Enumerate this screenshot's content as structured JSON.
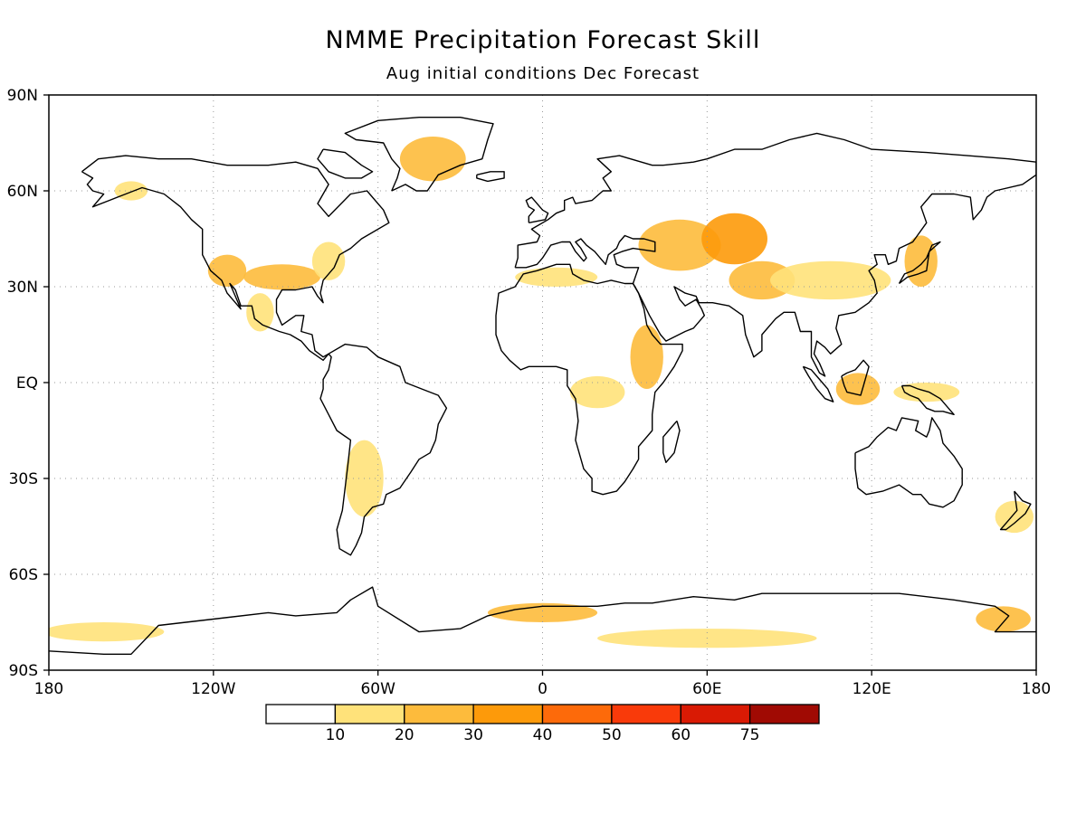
{
  "header": {
    "title": "NMME Precipitation Forecast Skill",
    "subtitle": "Aug initial conditions  Dec Forecast"
  },
  "axes": {
    "lat_labels": [
      "90N",
      "60N",
      "30N",
      "EQ",
      "30S",
      "60S",
      "90S"
    ],
    "lat_values": [
      90,
      60,
      30,
      0,
      -30,
      -60,
      -90
    ],
    "lon_labels": [
      "180",
      "120W",
      "60W",
      "0",
      "60E",
      "120E",
      "180"
    ],
    "lon_values": [
      -180,
      -120,
      -60,
      0,
      60,
      120,
      180
    ],
    "grid": true
  },
  "colorbar": {
    "labels": [
      "10",
      "20",
      "30",
      "40",
      "50",
      "60",
      "75"
    ],
    "bins": [
      {
        "min": null,
        "max": 10,
        "color": "#ffffff"
      },
      {
        "min": 10,
        "max": 20,
        "color": "#ffe27a"
      },
      {
        "min": 20,
        "max": 30,
        "color": "#fdbb3c"
      },
      {
        "min": 30,
        "max": 40,
        "color": "#fd9a0a"
      },
      {
        "min": 40,
        "max": 50,
        "color": "#fd6a0a"
      },
      {
        "min": 50,
        "max": 60,
        "color": "#f93a0a"
      },
      {
        "min": 60,
        "max": 75,
        "color": "#d91a04"
      },
      {
        "min": 75,
        "max": null,
        "color": "#a00a03"
      }
    ]
  },
  "skill_regions": [
    {
      "name": "greenland",
      "lon": -40,
      "lat": 70,
      "rlon": 12,
      "rlat": 7,
      "level": 2
    },
    {
      "name": "western-us",
      "lon": -115,
      "lat": 35,
      "rlon": 7,
      "rlat": 5,
      "level": 2
    },
    {
      "name": "southern-us",
      "lon": -95,
      "lat": 33,
      "rlon": 14,
      "rlat": 4,
      "level": 2
    },
    {
      "name": "mexico",
      "lon": -103,
      "lat": 22,
      "rlon": 5,
      "rlat": 6,
      "level": 1
    },
    {
      "name": "eastern-us",
      "lon": -78,
      "lat": 38,
      "rlon": 6,
      "rlat": 6,
      "level": 1
    },
    {
      "name": "alaska",
      "lon": -150,
      "lat": 60,
      "rlon": 6,
      "rlat": 3,
      "level": 1
    },
    {
      "name": "caspian",
      "lon": 50,
      "lat": 43,
      "rlon": 15,
      "rlat": 8,
      "level": 2
    },
    {
      "name": "central-asia",
      "lon": 70,
      "lat": 45,
      "rlon": 12,
      "rlat": 8,
      "level": 3
    },
    {
      "name": "tibet",
      "lon": 80,
      "lat": 32,
      "rlon": 12,
      "rlat": 6,
      "level": 2
    },
    {
      "name": "china",
      "lon": 105,
      "lat": 32,
      "rlon": 22,
      "rlat": 6,
      "level": 1
    },
    {
      "name": "japan",
      "lon": 138,
      "lat": 38,
      "rlon": 6,
      "rlat": 8,
      "level": 2
    },
    {
      "name": "north-africa",
      "lon": 5,
      "lat": 33,
      "rlon": 15,
      "rlat": 3,
      "level": 1
    },
    {
      "name": "east-africa",
      "lon": 38,
      "lat": 8,
      "rlon": 6,
      "rlat": 10,
      "level": 2
    },
    {
      "name": "central-africa",
      "lon": 20,
      "lat": -3,
      "rlon": 10,
      "rlat": 5,
      "level": 1
    },
    {
      "name": "maritime-continent",
      "lon": 115,
      "lat": -2,
      "rlon": 8,
      "rlat": 5,
      "level": 2
    },
    {
      "name": "new-guinea",
      "lon": 140,
      "lat": -3,
      "rlon": 12,
      "rlat": 3,
      "level": 1
    },
    {
      "name": "southern-south-america",
      "lon": -65,
      "lat": -30,
      "rlon": 7,
      "rlat": 12,
      "level": 1
    },
    {
      "name": "new-zealand",
      "lon": 172,
      "lat": -42,
      "rlon": 7,
      "rlat": 5,
      "level": 1
    },
    {
      "name": "antarctica-weddell",
      "lon": 0,
      "lat": -72,
      "rlon": 20,
      "rlat": 3,
      "level": 2
    },
    {
      "name": "antarctica-pacific",
      "lon": -160,
      "lat": -78,
      "rlon": 22,
      "rlat": 3,
      "level": 1
    },
    {
      "name": "antarctica-east",
      "lon": 60,
      "lat": -80,
      "rlon": 40,
      "rlat": 3,
      "level": 1
    },
    {
      "name": "ross-sea",
      "lon": 168,
      "lat": -74,
      "rlon": 10,
      "rlat": 4,
      "level": 2
    }
  ]
}
